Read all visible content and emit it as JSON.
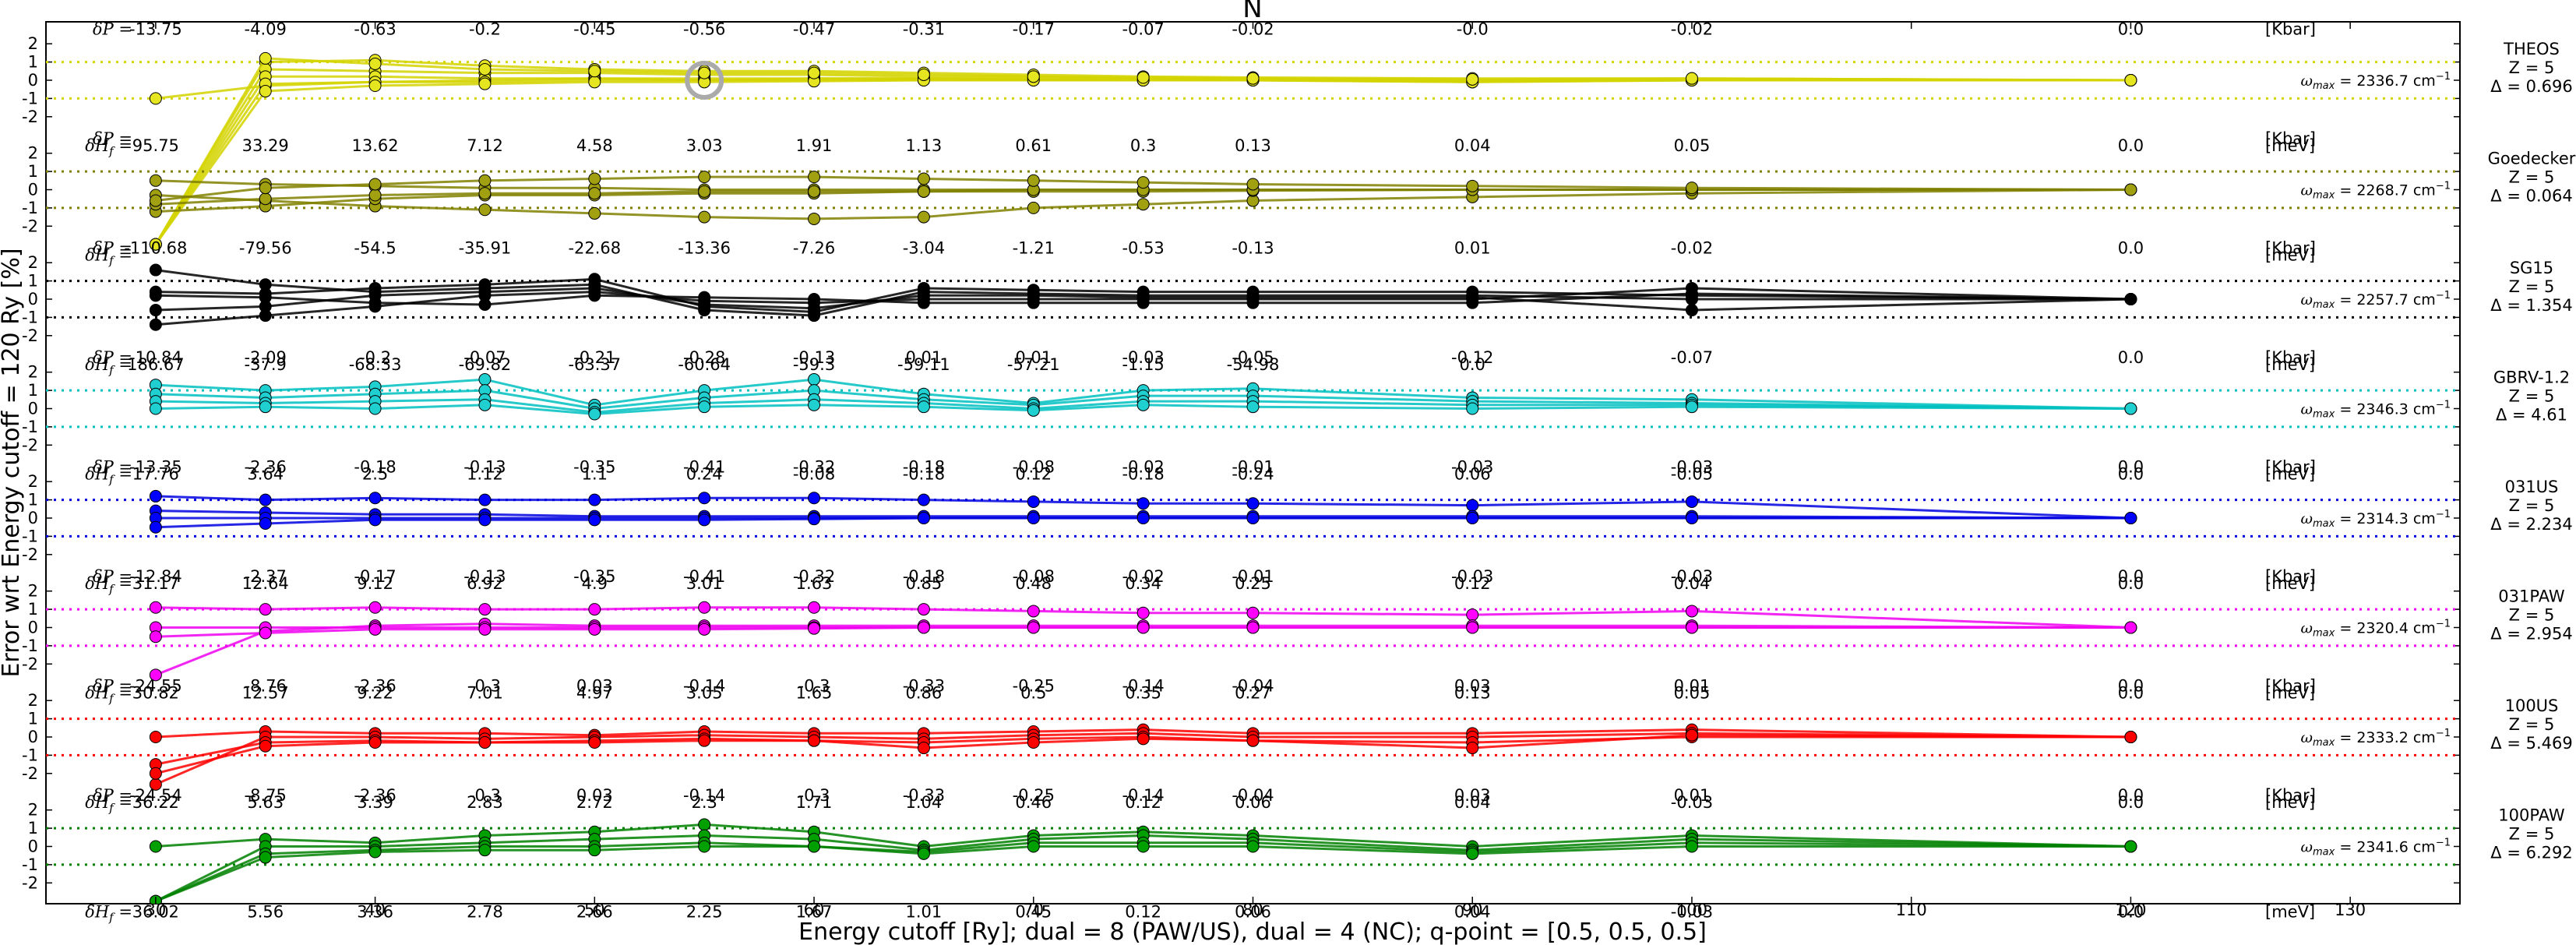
{
  "chart_data": {
    "type": "line",
    "title": "N",
    "xlabel": "Energy cutoff [Ry]; dual = 8 (PAW/US), dual = 4 (NC); q-point = [0.5, 0.5, 0.5]",
    "ylabel": "Error wrt Energy cutoff = 120 Ry [%]",
    "xlim": [
      25,
      135
    ],
    "xticks": [
      "30",
      "40",
      "50",
      "60",
      "70",
      "80",
      "90",
      "100",
      "110",
      "120",
      "130"
    ],
    "yticks": [
      "2",
      "1",
      "0",
      "-1",
      "-2"
    ],
    "dp_symbol": "δP =",
    "dh_symbol": "δH",
    "dh_subscript": "f",
    "dh_eq": " =",
    "dp_unit": "[Kbar]",
    "dh_unit": "[meV]",
    "omega_symbol": "ω",
    "omega_sub": "max",
    "omega_unit": "cm",
    "omega_exp": "−1",
    "x_values": [
      30,
      35,
      40,
      45,
      50,
      55,
      60,
      65,
      70,
      75,
      80,
      90,
      100,
      120
    ],
    "highlight": {
      "panel": 0,
      "x": 55
    },
    "panels": [
      {
        "name": "THEOS",
        "z": "Z = 5",
        "delta": "Δ = 0.696",
        "omega": "2336.7",
        "color": "#d4d400",
        "marker_color": "#e6e620",
        "dP": [
          "-13.75",
          "-4.09",
          "-0.63",
          "-0.2",
          "-0.45",
          "-0.56",
          "-0.47",
          "-0.31",
          "-0.17",
          "-0.07",
          "-0.02",
          "-0.0",
          "-0.02",
          "0.0"
        ],
        "dH": [
          "95.75",
          "33.29",
          "13.62",
          "7.12",
          "4.58",
          "3.03",
          "1.91",
          "1.13",
          "0.61",
          "0.3",
          "0.13",
          "0.04",
          "0.05",
          "0.0"
        ],
        "series": [
          [
            -1.0,
            -0.3,
            -0.1,
            0.0,
            0.1,
            0.0,
            0.1,
            0.1,
            0.05,
            0.0,
            0.0,
            0.0,
            0.05,
            0.0
          ],
          [
            -9,
            1.0,
            1.1,
            0.8,
            0.6,
            0.5,
            0.5,
            0.4,
            0.3,
            0.2,
            0.15,
            0.1,
            0.1,
            0.0
          ],
          [
            -9,
            0.6,
            0.5,
            0.4,
            0.4,
            0.3,
            0.3,
            0.2,
            0.2,
            0.1,
            0.1,
            0.0,
            0.05,
            0.0
          ],
          [
            -9,
            0.2,
            0.2,
            0.1,
            0.1,
            0.1,
            0.1,
            0.1,
            0.1,
            0.05,
            0.05,
            -0.05,
            0.0,
            0.0
          ],
          [
            -9,
            -0.2,
            -0.1,
            -0.1,
            0.0,
            0.0,
            0.0,
            0.0,
            0.0,
            0.0,
            0.0,
            -0.1,
            0.0,
            0.0
          ],
          [
            -9,
            -0.6,
            -0.3,
            -0.2,
            -0.1,
            -0.1,
            -0.05,
            0.0,
            0.0,
            0.0,
            0.0,
            -0.1,
            0.0,
            0.0
          ],
          [
            -9,
            1.2,
            0.9,
            0.6,
            0.5,
            0.4,
            0.4,
            0.3,
            0.2,
            0.15,
            0.1,
            0.05,
            0.1,
            0.0
          ]
        ]
      },
      {
        "name": "Goedecker",
        "z": "Z = 5",
        "delta": "Δ = 0.064",
        "omega": "2268.7",
        "color": "#808000",
        "marker_color": "#a0a010",
        "dP": [
          "",
          "",
          "",
          "",
          "",
          "",
          "",
          "",
          "",
          "",
          "",
          "",
          "",
          ""
        ],
        "dH": [
          "",
          "",
          "",
          "",
          "",
          "",
          "",
          "",
          "",
          "",
          "",
          "",
          "",
          ""
        ],
        "series": [
          [
            -0.3,
            -0.6,
            -0.9,
            -1.1,
            -1.3,
            -1.5,
            -1.6,
            -1.5,
            -1.0,
            -0.8,
            -0.6,
            -0.4,
            -0.2,
            0.0
          ],
          [
            0.5,
            0.3,
            0.2,
            0.1,
            0.1,
            0.0,
            0.0,
            0.0,
            0.0,
            0.0,
            0.0,
            0.0,
            0.0,
            0.0
          ],
          [
            -1.2,
            -0.9,
            -0.5,
            -0.3,
            -0.3,
            -0.2,
            -0.2,
            -0.1,
            -0.1,
            -0.1,
            -0.05,
            0.0,
            0.0,
            0.0
          ],
          [
            -0.8,
            -0.5,
            -0.3,
            -0.2,
            -0.2,
            -0.1,
            -0.1,
            -0.1,
            0.0,
            0.0,
            0.0,
            0.0,
            0.0,
            0.0
          ],
          [
            -0.6,
            0.1,
            0.3,
            0.5,
            0.6,
            0.7,
            0.7,
            0.6,
            0.5,
            0.4,
            0.3,
            0.2,
            0.1,
            0.0
          ]
        ]
      },
      {
        "name": "SG15",
        "z": "Z = 5",
        "delta": "Δ = 1.354",
        "omega": "2257.7",
        "color": "#000000",
        "marker_color": "#000000",
        "dP": [
          "-110.68",
          "-79.56",
          "-54.5",
          "-35.91",
          "-22.68",
          "-13.36",
          "-7.26",
          "-3.04",
          "-1.21",
          "-0.53",
          "-0.13",
          "0.01",
          "-0.02",
          "0.0"
        ],
        "dH": [
          "186.67",
          "-37.9",
          "-68.33",
          "-69.82",
          "-63.37",
          "-60.64",
          "-59.3",
          "-59.11",
          "-57.21",
          "-1.15",
          "-54.98",
          "0.0",
          "",
          ""
        ],
        "series": [
          [
            1.6,
            0.8,
            0.4,
            0.6,
            0.8,
            -0.6,
            -0.9,
            0.4,
            0.3,
            0.2,
            0.2,
            0.2,
            0.0,
            0.0
          ],
          [
            -0.6,
            -0.4,
            0.2,
            0.4,
            0.6,
            -0.3,
            -0.5,
            0.2,
            0.2,
            0.1,
            0.1,
            0.1,
            -0.6,
            0.0
          ],
          [
            -1.4,
            -0.9,
            -0.4,
            0.2,
            0.4,
            -0.1,
            -0.2,
            0.0,
            0.0,
            0.0,
            0.0,
            0.0,
            0.6,
            0.0
          ],
          [
            0.2,
            0.1,
            -0.2,
            -0.3,
            0.2,
            0.1,
            0.0,
            -0.2,
            -0.2,
            -0.2,
            -0.2,
            -0.2,
            0.3,
            0.0
          ],
          [
            0.4,
            0.3,
            0.6,
            0.8,
            1.1,
            -0.4,
            -0.7,
            0.6,
            0.5,
            0.4,
            0.4,
            0.4,
            0.2,
            0.0
          ]
        ]
      },
      {
        "name": "GBRV-1.2",
        "z": "Z = 5",
        "delta": "Δ = 4.61",
        "omega": "2346.3",
        "color": "#00c0c0",
        "marker_color": "#20d0d0",
        "dP": [
          "-10.84",
          "-2.09",
          "-0.2",
          "-0.07",
          "-0.21",
          "-0.28",
          "-0.13",
          "0.01",
          "0.01",
          "-0.03",
          "-0.05",
          "-0.12",
          "-0.07",
          "0.0"
        ],
        "dH": [
          "17.76",
          "3.64",
          "2.5",
          "1.12",
          "1.1",
          "0.24",
          "-0.08",
          "-0.18",
          "0.12",
          "-0.18",
          "-0.24",
          "0.06",
          "-0.05",
          "0.0"
        ],
        "series": [
          [
            1.3,
            1.0,
            1.2,
            1.6,
            0.2,
            1.0,
            1.6,
            0.8,
            0.3,
            1.0,
            1.1,
            0.6,
            0.5,
            0.0
          ],
          [
            0.8,
            0.6,
            0.8,
            1.0,
            0.0,
            0.6,
            1.0,
            0.5,
            0.2,
            0.7,
            0.7,
            0.4,
            0.3,
            0.0
          ],
          [
            0.4,
            0.3,
            0.4,
            0.5,
            -0.2,
            0.3,
            0.5,
            0.3,
            0.0,
            0.4,
            0.4,
            0.2,
            0.2,
            0.0
          ],
          [
            0.0,
            0.1,
            0.0,
            0.2,
            -0.3,
            0.1,
            0.2,
            0.1,
            -0.1,
            0.2,
            0.1,
            0.0,
            0.1,
            0.0
          ]
        ]
      },
      {
        "name": "031US",
        "z": "Z = 5",
        "delta": "Δ = 2.234",
        "omega": "2314.3",
        "color": "#0000e0",
        "marker_color": "#0000ff",
        "dP": [
          "-13.35",
          "-2.36",
          "-0.18",
          "-0.13",
          "-0.35",
          "-0.41",
          "-0.32",
          "-0.18",
          "-0.08",
          "-0.02",
          "-0.01",
          "-0.03",
          "-0.03",
          "0.0"
        ],
        "dH": [
          "31.17",
          "12.64",
          "9.12",
          "6.92",
          "4.9",
          "3.01",
          "1.63",
          "0.85",
          "0.48",
          "0.34",
          "0.25",
          "0.12",
          "0.04",
          "0.0"
        ],
        "series": [
          [
            1.2,
            1.0,
            1.1,
            1.0,
            1.0,
            1.1,
            1.1,
            1.0,
            0.9,
            0.8,
            0.8,
            0.7,
            0.9,
            0.0
          ],
          [
            0.4,
            0.3,
            0.2,
            0.2,
            0.1,
            0.1,
            0.1,
            0.1,
            0.1,
            0.1,
            0.1,
            0.1,
            0.1,
            0.0
          ],
          [
            0.0,
            0.0,
            0.0,
            0.0,
            0.0,
            0.0,
            0.0,
            0.0,
            0.0,
            0.0,
            0.0,
            0.0,
            0.0,
            0.0
          ],
          [
            -0.5,
            -0.3,
            -0.1,
            -0.1,
            -0.1,
            -0.1,
            -0.05,
            0.0,
            0.0,
            0.0,
            0.0,
            0.0,
            0.0,
            0.0
          ]
        ]
      },
      {
        "name": "031PAW",
        "z": "Z = 5",
        "delta": "Δ = 2.954",
        "omega": "2320.4",
        "color": "#f000f0",
        "marker_color": "#ff00ff",
        "dP": [
          "-12.84",
          "-2.37",
          "-0.17",
          "-0.13",
          "-0.35",
          "-0.41",
          "-0.32",
          "-0.18",
          "-0.08",
          "-0.02",
          "-0.01",
          "-0.03",
          "-0.03",
          "0.0"
        ],
        "dH": [
          "30.82",
          "12.57",
          "9.22",
          "7.01",
          "4.97",
          "3.05",
          "1.65",
          "0.86",
          "0.5",
          "0.35",
          "0.27",
          "0.13",
          "0.05",
          "0.0"
        ],
        "series": [
          [
            1.1,
            1.0,
            1.1,
            1.0,
            1.0,
            1.1,
            1.1,
            1.0,
            0.9,
            0.8,
            0.8,
            0.7,
            0.9,
            0.0
          ],
          [
            -2.6,
            -0.2,
            0.1,
            0.2,
            0.1,
            0.1,
            0.1,
            0.1,
            0.1,
            0.1,
            0.1,
            0.1,
            0.1,
            0.0
          ],
          [
            0.0,
            0.0,
            0.0,
            0.0,
            0.0,
            0.0,
            0.0,
            0.0,
            0.0,
            0.0,
            0.0,
            0.0,
            0.0,
            0.0
          ],
          [
            -0.5,
            -0.3,
            -0.1,
            -0.1,
            -0.1,
            -0.1,
            -0.05,
            0.0,
            0.0,
            0.0,
            0.0,
            0.0,
            0.0,
            0.0
          ]
        ]
      },
      {
        "name": "100US",
        "z": "Z = 5",
        "delta": "Δ = 5.469",
        "omega": "2333.2",
        "color": "#ff0000",
        "marker_color": "#ff0000",
        "dP": [
          "-24.55",
          "-8.76",
          "-2.36",
          "-0.3",
          "0.03",
          "-0.14",
          "-0.3",
          "-0.33",
          "-0.25",
          "-0.14",
          "-0.04",
          "0.03",
          "0.01",
          "0.0"
        ],
        "dH": [
          "36.22",
          "5.63",
          "3.39",
          "2.83",
          "2.72",
          "2.3",
          "1.71",
          "1.04",
          "0.46",
          "0.12",
          "0.06",
          "0.04",
          "-0.03",
          "0.0"
        ],
        "series": [
          [
            0.0,
            0.3,
            0.2,
            0.2,
            0.1,
            0.3,
            0.2,
            0.2,
            0.3,
            0.4,
            0.2,
            0.2,
            0.4,
            0.0
          ],
          [
            -2.6,
            0.0,
            0.0,
            -0.1,
            0.0,
            0.1,
            0.0,
            -0.1,
            0.1,
            0.2,
            0.0,
            0.0,
            0.2,
            0.0
          ],
          [
            -1.5,
            -0.3,
            -0.2,
            -0.3,
            -0.2,
            -0.1,
            -0.2,
            -0.3,
            -0.1,
            0.0,
            -0.2,
            -0.3,
            0.0,
            0.0
          ],
          [
            -2.0,
            -0.5,
            -0.3,
            -0.3,
            -0.3,
            -0.2,
            -0.2,
            -0.6,
            -0.3,
            -0.1,
            -0.2,
            -0.6,
            0.1,
            0.0
          ]
        ]
      },
      {
        "name": "100PAW",
        "z": "Z = 5",
        "delta": "Δ = 6.292",
        "omega": "2341.6",
        "color": "#008000",
        "marker_color": "#00a000",
        "dP": [
          "-24.54",
          "-8.75",
          "-2.36",
          "-0.3",
          "0.03",
          "-0.14",
          "-0.3",
          "-0.33",
          "-0.25",
          "-0.14",
          "-0.04",
          "0.03",
          "0.01",
          "0.0"
        ],
        "dH": [
          "36.02",
          "5.56",
          "3.36",
          "2.78",
          "2.66",
          "2.25",
          "1.67",
          "1.01",
          "0.45",
          "0.12",
          "0.06",
          "0.04",
          "-0.03",
          "0.0"
        ],
        "series": [
          [
            0.0,
            0.4,
            0.2,
            0.6,
            0.8,
            1.2,
            0.8,
            0.0,
            0.6,
            0.8,
            0.6,
            0.0,
            0.6,
            0.0
          ],
          [
            -3.0,
            0.0,
            0.0,
            0.2,
            0.4,
            0.6,
            0.4,
            -0.2,
            0.4,
            0.6,
            0.4,
            -0.2,
            0.4,
            0.0
          ],
          [
            -3.0,
            -0.4,
            -0.2,
            0.0,
            0.0,
            0.2,
            0.0,
            -0.3,
            0.2,
            0.2,
            0.2,
            -0.3,
            0.2,
            0.0
          ],
          [
            -3.0,
            -0.6,
            -0.3,
            -0.2,
            -0.2,
            0.0,
            0.0,
            -0.4,
            0.0,
            0.0,
            0.0,
            -0.4,
            0.0,
            0.0
          ]
        ]
      }
    ]
  }
}
